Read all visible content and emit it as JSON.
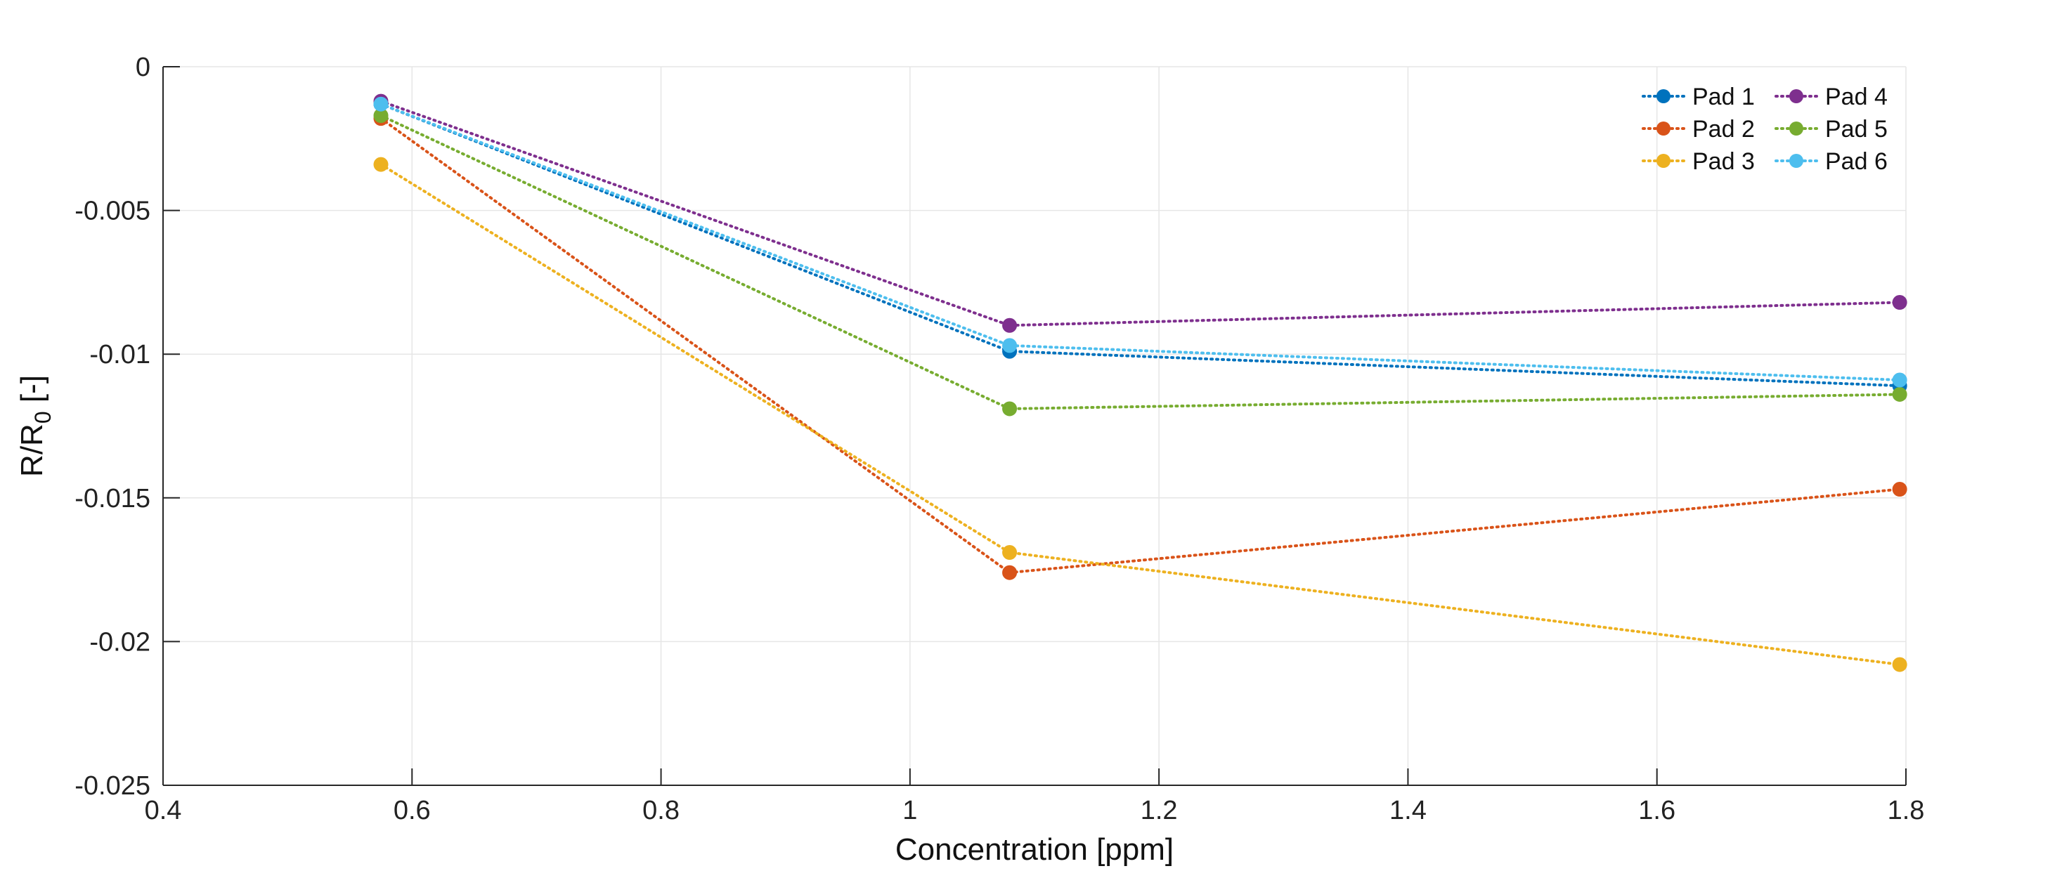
{
  "chart_data": {
    "type": "line",
    "xlabel": "Concentration [ppm]",
    "ylabel": {
      "main": "R/R",
      "sub": "0",
      "suffix": " [-]"
    },
    "xlim": [
      0.4,
      1.8
    ],
    "ylim": [
      -0.025,
      0
    ],
    "xticks": [
      0.4,
      0.6,
      0.8,
      1.0,
      1.2,
      1.4,
      1.6,
      1.8
    ],
    "xtick_labels": [
      "0.4",
      "0.6",
      "0.8",
      "1",
      "1.2",
      "1.4",
      "1.6",
      "1.8"
    ],
    "yticks": [
      0,
      -0.005,
      -0.01,
      -0.015,
      -0.02,
      -0.025
    ],
    "ytick_labels": [
      "0",
      "-0.005",
      "-0.01",
      "-0.015",
      "-0.02",
      "-0.025"
    ],
    "grid": true,
    "line_style": "dotted",
    "marker": "circle",
    "legend_position": "top-right",
    "legend_columns": 2,
    "x": [
      0.575,
      1.08,
      1.795
    ],
    "series": [
      {
        "name": "Pad 1",
        "color": "#0072BD",
        "values": [
          -0.0013,
          -0.0099,
          -0.0111
        ]
      },
      {
        "name": "Pad 2",
        "color": "#D95319",
        "values": [
          -0.0018,
          -0.0176,
          -0.0147
        ]
      },
      {
        "name": "Pad 3",
        "color": "#EDB120",
        "values": [
          -0.0034,
          -0.0169,
          -0.0208
        ]
      },
      {
        "name": "Pad 4",
        "color": "#7E2F8E",
        "values": [
          -0.0012,
          -0.009,
          -0.0082
        ]
      },
      {
        "name": "Pad 5",
        "color": "#77AC30",
        "values": [
          -0.0017,
          -0.0119,
          -0.0114
        ]
      },
      {
        "name": "Pad 6",
        "color": "#4DBEEE",
        "values": [
          -0.0013,
          -0.0097,
          -0.0109
        ]
      }
    ]
  }
}
